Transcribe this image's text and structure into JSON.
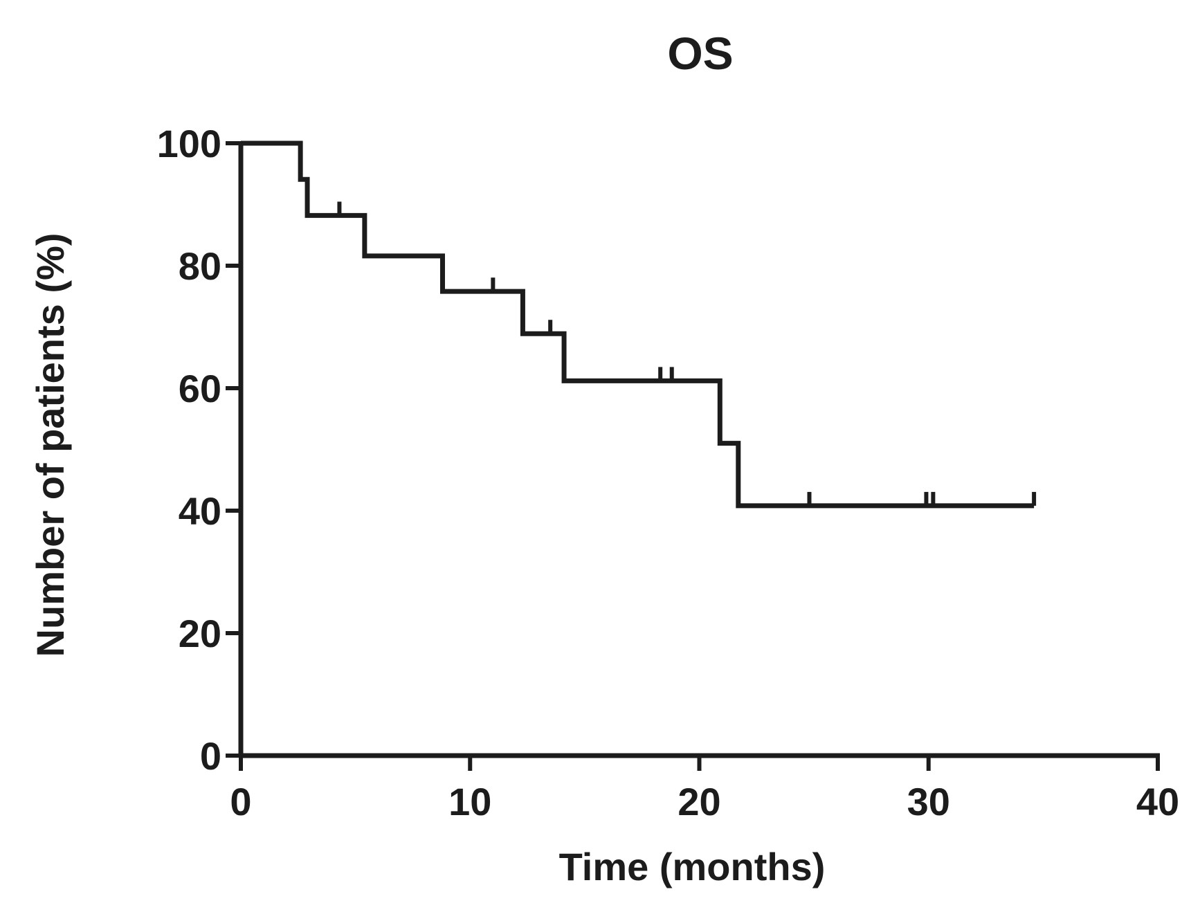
{
  "chart_data": {
    "type": "line",
    "subtype": "kaplan-meier-step",
    "title": "OS",
    "xlabel": "Time (months)",
    "ylabel": "Number of patients (%)",
    "xlim": [
      0,
      40
    ],
    "ylim": [
      0,
      100
    ],
    "x_ticks": [
      0,
      10,
      20,
      30,
      40
    ],
    "y_ticks": [
      0,
      20,
      40,
      60,
      80,
      100
    ],
    "grid": false,
    "color": "#1c1c1c",
    "steps": [
      {
        "x": 0,
        "y": 100
      },
      {
        "x": 2.6,
        "y": 94.1
      },
      {
        "x": 2.9,
        "y": 88.2
      },
      {
        "x": 5.4,
        "y": 81.6
      },
      {
        "x": 8.8,
        "y": 75.8
      },
      {
        "x": 12.3,
        "y": 68.9
      },
      {
        "x": 14.1,
        "y": 61.2
      },
      {
        "x": 20.9,
        "y": 51.0
      },
      {
        "x": 21.7,
        "y": 40.8
      }
    ],
    "end_x": 34.6,
    "censored": [
      {
        "x": 4.3,
        "y": 88.2
      },
      {
        "x": 11.0,
        "y": 75.8
      },
      {
        "x": 13.5,
        "y": 68.9
      },
      {
        "x": 18.3,
        "y": 61.2
      },
      {
        "x": 18.8,
        "y": 61.2
      },
      {
        "x": 24.8,
        "y": 40.8
      },
      {
        "x": 29.9,
        "y": 40.8
      },
      {
        "x": 30.2,
        "y": 40.8
      },
      {
        "x": 34.6,
        "y": 40.8
      }
    ]
  }
}
